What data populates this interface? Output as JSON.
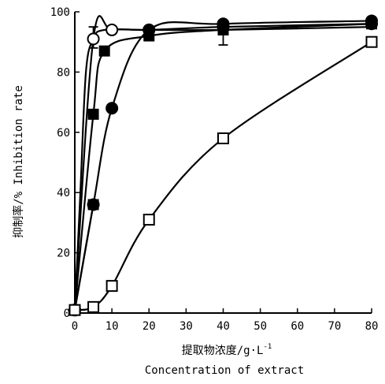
{
  "chart_data": {
    "type": "line",
    "title": "",
    "xlabel_cn": "提取物浓度/g·L",
    "xlabel_cn_sup": "-1",
    "xlabel_en": "Concentration of extract",
    "ylabel": "抑制率/%  Inhibition rate",
    "xlim": [
      0,
      80
    ],
    "ylim": [
      0,
      100
    ],
    "x_ticks": [
      0,
      10,
      20,
      30,
      40,
      50,
      60,
      70,
      80
    ],
    "y_ticks": [
      0,
      20,
      40,
      60,
      80,
      100
    ],
    "legend": "none",
    "grid": false,
    "series": [
      {
        "marker": "open-circle",
        "points": [
          [
            0,
            1
          ],
          [
            5,
            91
          ],
          [
            10,
            94
          ],
          [
            20,
            94
          ],
          [
            40,
            95
          ],
          [
            80,
            96
          ]
        ],
        "error_bars": []
      },
      {
        "marker": "filled-square",
        "points": [
          [
            0,
            1
          ],
          [
            5,
            66
          ],
          [
            8,
            87
          ],
          [
            20,
            92
          ],
          [
            40,
            94
          ],
          [
            80,
            96
          ]
        ],
        "error_bars": []
      },
      {
        "marker": "filled-circle",
        "points": [
          [
            0,
            1
          ],
          [
            5,
            36
          ],
          [
            10,
            68
          ],
          [
            20,
            94
          ],
          [
            40,
            96
          ],
          [
            80,
            97
          ]
        ],
        "error_bars": []
      },
      {
        "marker": "filled-square",
        "points": [
          [
            0,
            1
          ],
          [
            5,
            36
          ]
        ],
        "error_bars": []
      },
      {
        "marker": "open-square",
        "points": [
          [
            0,
            1
          ],
          [
            5,
            2
          ],
          [
            10,
            9
          ],
          [
            20,
            31
          ],
          [
            40,
            58
          ],
          [
            80,
            90
          ]
        ],
        "error_bars": []
      },
      {
        "marker": "none",
        "points": [
          [
            0,
            1
          ],
          [
            1.5,
            40
          ],
          [
            3,
            80
          ],
          [
            5,
            91
          ],
          [
            8,
            94
          ],
          [
            20,
            94
          ],
          [
            40,
            94
          ],
          [
            80,
            95
          ]
        ],
        "error_bars": [
          {
            "x": 5,
            "low": 88,
            "high": 95
          },
          {
            "x": 40,
            "low": 89,
            "high": 95
          }
        ]
      }
    ]
  }
}
